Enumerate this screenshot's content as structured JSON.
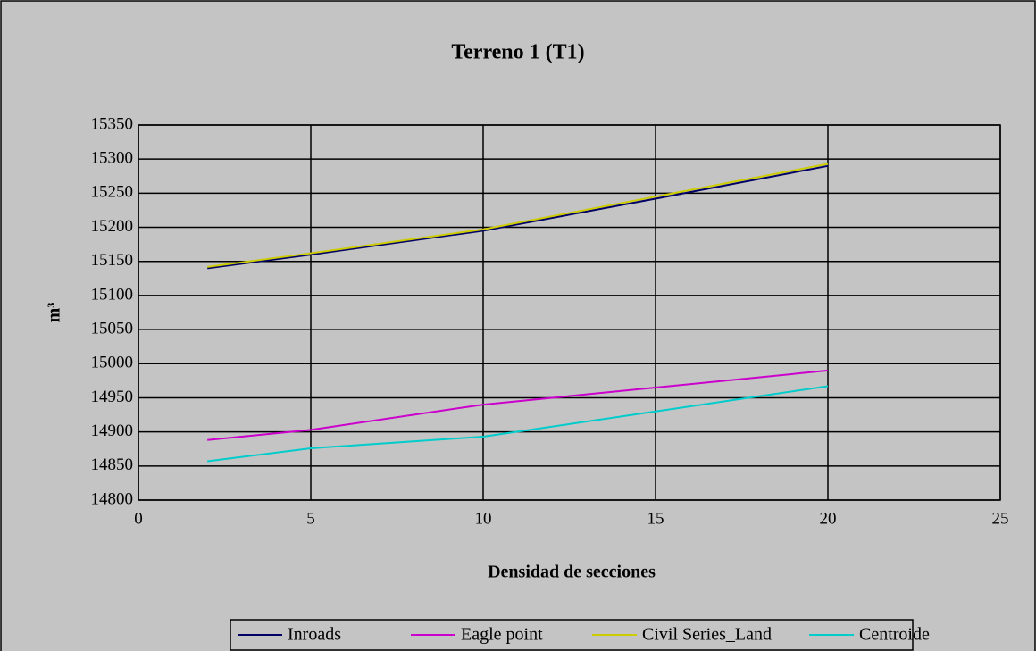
{
  "chart_data": {
    "type": "line",
    "title": "Terreno 1 (T1)",
    "x_label": "Densidad de secciones",
    "y_label": "m³",
    "x": [
      2,
      5,
      10,
      15,
      20
    ],
    "series": [
      {
        "name": "Inroads",
        "color": "#000066",
        "values": [
          15140,
          15160,
          15195,
          15242,
          15290
        ]
      },
      {
        "name": "Eagle point",
        "color": "#cc00cc",
        "values": [
          14888,
          14903,
          14940,
          14965,
          14990
        ]
      },
      {
        "name": "Civil Series_Land",
        "color": "#cccc00",
        "values": [
          15142,
          15162,
          15197,
          15245,
          15293
        ]
      },
      {
        "name": "Centroide",
        "color": "#00cccc",
        "values": [
          14857,
          14876,
          14893,
          14930,
          14967
        ]
      }
    ],
    "xlim": [
      0,
      25
    ],
    "xticks": [
      0,
      5,
      10,
      15,
      20,
      25
    ],
    "ylim": [
      14800,
      15350
    ],
    "yticks": [
      14800,
      14850,
      14900,
      14950,
      15000,
      15050,
      15100,
      15150,
      15200,
      15250,
      15300,
      15350
    ],
    "grid": true,
    "legend": "bottom"
  }
}
